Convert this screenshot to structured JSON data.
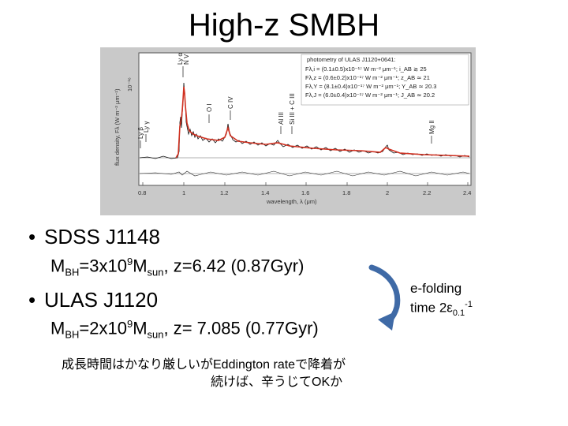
{
  "slide": {
    "title": "High-z SMBH"
  },
  "figure": {
    "photometry_header": "photometry of ULAS J1120+0641:",
    "photometry_lines": [
      "Fλ,i = (0.1±0.5)x10⁻¹⁷ W m⁻² μm⁻¹;  i_AB ≳ 25",
      "Fλ,z = (0.6±0.2)x10⁻¹⁷ W m⁻² μm⁻¹;  z_AB ≃ 21",
      "Fλ,Y = (8.1±0.4)x10⁻¹⁷ W m⁻² μm⁻¹;  Y_AB ≃ 20.3",
      "Fλ,J = (6.0±0.4)x10⁻¹⁷ W m⁻² μm⁻¹;  J_AB ≃ 20.2"
    ],
    "y_axis_label": "flux density, Fλ (W m⁻² μm⁻¹)",
    "y_tick_label": "10⁻¹⁶",
    "x_axis_label": "wavelength, λ (μm)",
    "x_tick_labels": [
      "0.8",
      "1",
      "1.2",
      "1.4",
      "1.6",
      "1.8",
      "2",
      "2.2",
      "2.4"
    ],
    "line_labels": {
      "lya": "Ly α",
      "nv": "N V",
      "oi": "O I",
      "civ": "C IV",
      "aliii": "Al III",
      "siiii_ciii": "Si III + C III",
      "mgii": "Mg II",
      "lyb": "Ly β",
      "lyg": "Ly γ"
    }
  },
  "bullets": [
    {
      "name": "SDSS J1148",
      "mass_coef": "3x10",
      "mass_exp": "9",
      "details": ", z=6.42 (0.87Gyr)"
    },
    {
      "name": "ULAS J1120",
      "mass_coef": "2x10",
      "mass_exp": "9",
      "details": ", z= 7.085 (0.77Gyr)"
    }
  ],
  "mass_labels": {
    "m": "M",
    "bh": "BH",
    "m2": "M",
    "sun": "sun"
  },
  "note": {
    "line1": "成長時間はかなり厳しいがEddington rateで降着が",
    "line2": "続けば、辛うじてOKか"
  },
  "efolding": {
    "line1": "e-folding",
    "line2_prefix": "time 2ε",
    "line2_sub": "0.1",
    "line2_sup": "-1"
  },
  "colors": {
    "arrow": "#3f6aa6",
    "figure_bg": "#c9c9c9",
    "spectrum_red": "#d03020"
  }
}
